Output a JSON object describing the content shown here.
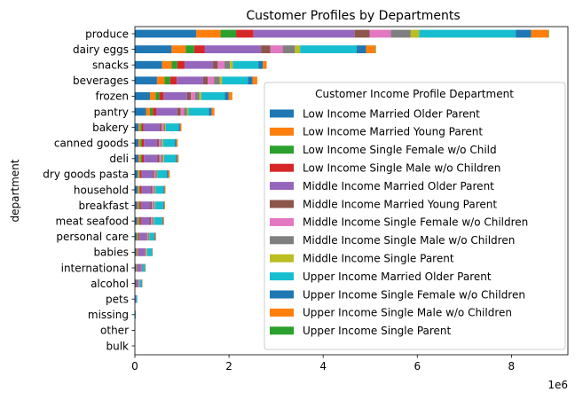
{
  "chart_data": {
    "type": "bar",
    "orientation": "horizontal",
    "stacked": true,
    "title": "Customer Profiles by Departments",
    "xlabel": "",
    "ylabel": "department",
    "x_offset_label": "1e6",
    "x_ticks": [
      "0",
      "2",
      "4",
      "6",
      "8"
    ],
    "xlim": [
      0,
      9.2
    ],
    "grid": false,
    "legend": {
      "title": "Customer Income Profile Department",
      "placement": "lower-right"
    },
    "categories": [
      "produce",
      "dairy eggs",
      "snacks",
      "beverages",
      "frozen",
      "pantry",
      "bakery",
      "canned goods",
      "deli",
      "dry goods pasta",
      "household",
      "breakfast",
      "meat seafood",
      "personal care",
      "babies",
      "international",
      "alcohol",
      "pets",
      "missing",
      "other",
      "bulk"
    ],
    "series": [
      {
        "name": "Low Income Married Older Parent",
        "color": "#1f77b4",
        "values": [
          1.3,
          0.78,
          0.58,
          0.47,
          0.32,
          0.24,
          0.08,
          0.08,
          0.08,
          0.06,
          0.06,
          0.05,
          0.05,
          0.04,
          0.03,
          0.02,
          0.01,
          0.01,
          0.0,
          0.0,
          0.0
        ]
      },
      {
        "name": "Low Income Married Young Parent",
        "color": "#ff7f0e",
        "values": [
          0.52,
          0.3,
          0.2,
          0.16,
          0.12,
          0.08,
          0.04,
          0.04,
          0.04,
          0.03,
          0.03,
          0.03,
          0.03,
          0.02,
          0.02,
          0.01,
          0.0,
          0.0,
          0.0,
          0.0,
          0.0
        ]
      },
      {
        "name": "Low Income Single Female w/o Child",
        "color": "#2ca02c",
        "values": [
          0.33,
          0.18,
          0.12,
          0.12,
          0.08,
          0.06,
          0.03,
          0.03,
          0.03,
          0.02,
          0.02,
          0.02,
          0.02,
          0.02,
          0.01,
          0.01,
          0.01,
          0.0,
          0.0,
          0.0,
          0.0
        ]
      },
      {
        "name": "Low Income Single Male w/o Children",
        "color": "#d62728",
        "values": [
          0.37,
          0.22,
          0.16,
          0.14,
          0.09,
          0.08,
          0.03,
          0.04,
          0.04,
          0.03,
          0.03,
          0.03,
          0.03,
          0.02,
          0.01,
          0.01,
          0.01,
          0.0,
          0.0,
          0.0,
          0.0
        ]
      },
      {
        "name": "Middle Income Married Older Parent",
        "color": "#9467bd",
        "values": [
          2.15,
          1.2,
          0.6,
          0.56,
          0.5,
          0.44,
          0.35,
          0.28,
          0.29,
          0.24,
          0.2,
          0.2,
          0.18,
          0.14,
          0.13,
          0.08,
          0.04,
          0.02,
          0.01,
          0.0,
          0.0
        ]
      },
      {
        "name": "Middle Income Married Young Parent",
        "color": "#8c564b",
        "values": [
          0.32,
          0.2,
          0.1,
          0.1,
          0.08,
          0.07,
          0.04,
          0.04,
          0.04,
          0.03,
          0.03,
          0.03,
          0.03,
          0.02,
          0.02,
          0.01,
          0.01,
          0.0,
          0.0,
          0.0,
          0.0
        ]
      },
      {
        "name": "Middle Income Single Female w/o Children",
        "color": "#e377c2",
        "values": [
          0.45,
          0.26,
          0.14,
          0.13,
          0.09,
          0.07,
          0.04,
          0.04,
          0.04,
          0.03,
          0.03,
          0.03,
          0.03,
          0.02,
          0.02,
          0.01,
          0.01,
          0.0,
          0.0,
          0.0,
          0.0
        ]
      },
      {
        "name": "Middle Income Single Male w/o Children",
        "color": "#7f7f7f",
        "values": [
          0.42,
          0.26,
          0.12,
          0.12,
          0.09,
          0.07,
          0.03,
          0.03,
          0.04,
          0.03,
          0.03,
          0.03,
          0.03,
          0.02,
          0.01,
          0.01,
          0.01,
          0.0,
          0.0,
          0.0,
          0.0
        ]
      },
      {
        "name": "Middle Income Single Parent",
        "color": "#bcbd22",
        "values": [
          0.18,
          0.11,
          0.06,
          0.05,
          0.04,
          0.03,
          0.02,
          0.02,
          0.02,
          0.01,
          0.01,
          0.01,
          0.01,
          0.01,
          0.01,
          0.0,
          0.0,
          0.0,
          0.0,
          0.0,
          0.0
        ]
      },
      {
        "name": "Upper Income Married Older Parent",
        "color": "#17becf",
        "values": [
          2.05,
          1.2,
          0.55,
          0.55,
          0.5,
          0.43,
          0.27,
          0.25,
          0.25,
          0.2,
          0.17,
          0.17,
          0.17,
          0.1,
          0.1,
          0.05,
          0.04,
          0.02,
          0.01,
          0.0,
          0.0
        ]
      },
      {
        "name": "Upper Income Single Female w/o Children",
        "color": "#1f77b4",
        "values": [
          0.33,
          0.2,
          0.09,
          0.1,
          0.08,
          0.06,
          0.03,
          0.03,
          0.03,
          0.03,
          0.02,
          0.02,
          0.02,
          0.02,
          0.01,
          0.01,
          0.01,
          0.0,
          0.0,
          0.0,
          0.0
        ]
      },
      {
        "name": "Upper Income Single Male w/o Children",
        "color": "#ff7f0e",
        "values": [
          0.37,
          0.2,
          0.08,
          0.1,
          0.08,
          0.06,
          0.03,
          0.03,
          0.03,
          0.03,
          0.02,
          0.02,
          0.02,
          0.02,
          0.01,
          0.01,
          0.01,
          0.0,
          0.0,
          0.0,
          0.0
        ]
      },
      {
        "name": "Upper Income Single Parent",
        "color": "#2ca02c",
        "values": [
          0.01,
          0.01,
          0.0,
          0.0,
          0.0,
          0.0,
          0.0,
          0.0,
          0.0,
          0.0,
          0.0,
          0.0,
          0.0,
          0.0,
          0.0,
          0.0,
          0.0,
          0.0,
          0.0,
          0.0,
          0.0
        ]
      }
    ]
  }
}
